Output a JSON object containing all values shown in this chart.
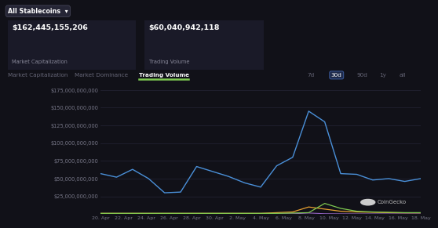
{
  "bg_color": "#111118",
  "plot_bg": "#111118",
  "grid_color": "#2a2a3a",
  "header_texts": {
    "market_cap": "$162,445,155,206",
    "market_cap_label": "Market Capitalization",
    "trading_volume": "$60,040,942,118",
    "trading_volume_label": "Trading Volume"
  },
  "tab_labels": [
    "Market Capitalization",
    "Market Dominance",
    "Trading Volume"
  ],
  "active_tab": "Trading Volume",
  "time_buttons": [
    "7d",
    "30d",
    "90d",
    "1y",
    "all"
  ],
  "active_time": "30d",
  "x_labels": [
    "20. Apr",
    "22. Apr",
    "24. Apr",
    "26. Apr",
    "28. Apr",
    "30. Apr",
    "2. May",
    "4. May",
    "6. May",
    "8. May",
    "10. May",
    "12. May",
    "14. May",
    "16. May",
    "18. May"
  ],
  "ytick_labels": [
    "$175,000,000,000",
    "$150,000,000,000",
    "$125,000,000,000",
    "$100,000,000,000",
    "$75,000,000,000",
    "$50,000,000,000",
    "$25,000,000,000"
  ],
  "ytick_values": [
    175000000000.0,
    150000000000.0,
    125000000000.0,
    100000000000.0,
    75000000000.0,
    50000000000.0,
    25000000000.0
  ],
  "blue_line": [
    57000000000.0,
    52000000000.0,
    63000000000.0,
    50000000000.0,
    30000000000.0,
    31000000000.0,
    67000000000.0,
    60000000000.0,
    53000000000.0,
    44000000000.0,
    38000000000.0,
    68000000000.0,
    80000000000.0,
    145000000000.0,
    130000000000.0,
    57000000000.0,
    56000000000.0,
    48000000000.0,
    50000000000.0,
    46000000000.0,
    50000000000.0
  ],
  "green_line": [
    1000000000.0,
    1000000000.0,
    1000000000.0,
    1000000000.0,
    1000000000.0,
    1000000000.0,
    1000000000.0,
    1000000000.0,
    1000000000.0,
    1000000000.0,
    1000000000.0,
    1000000000.0,
    1500000000.0,
    2000000000.0,
    15000000000.0,
    8000000000.0,
    4000000000.0,
    3000000000.0,
    2500000000.0,
    2000000000.0,
    2000000000.0
  ],
  "orange_line": [
    1000000000.0,
    1000000000.0,
    1000000000.0,
    1000000000.0,
    1000000000.0,
    1000000000.0,
    1000000000.0,
    1000000000.0,
    1000000000.0,
    1000000000.0,
    1000000000.0,
    2000000000.0,
    3000000000.0,
    10000000000.0,
    7000000000.0,
    4000000000.0,
    3000000000.0,
    2500000000.0,
    2000000000.0,
    1800000000.0,
    1800000000.0
  ],
  "yellow_line": [
    500000000.0,
    500000000.0,
    500000000.0,
    500000000.0,
    500000000.0,
    500000000.0,
    500000000.0,
    500000000.0,
    500000000.0,
    500000000.0,
    500000000.0,
    500000000.0,
    500000000.0,
    500000000.0,
    500000000.0,
    500000000.0,
    500000000.0,
    500000000.0,
    500000000.0,
    500000000.0,
    500000000.0
  ],
  "purple_line": [
    200000000.0,
    200000000.0,
    200000000.0,
    200000000.0,
    200000000.0,
    200000000.0,
    200000000.0,
    200000000.0,
    200000000.0,
    200000000.0,
    200000000.0,
    200000000.0,
    300000000.0,
    1500000000.0,
    500000000.0,
    300000000.0,
    200000000.0,
    200000000.0,
    200000000.0,
    200000000.0,
    200000000.0
  ],
  "line_colors": {
    "blue": "#4a90d9",
    "green": "#7ec850",
    "orange": "#e8a030",
    "yellow": "#c8b820",
    "purple": "#9060c0"
  },
  "n_points": 21,
  "btn_box_color": "#1e2a4a",
  "btn_box_edge": "#3a5a9a",
  "dropdown_bg": "#252535",
  "dropdown_edge": "#444455",
  "stat_box_bg": "#1a1a28",
  "coingecko_circle": "#cccccc"
}
